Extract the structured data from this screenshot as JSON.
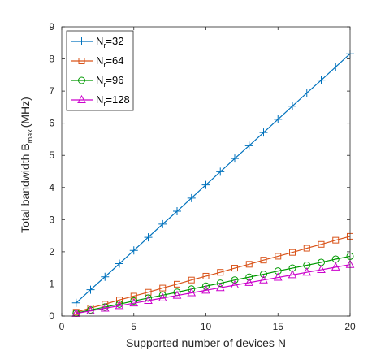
{
  "chart_data": {
    "type": "line",
    "xlabel": "Supported number of devices N",
    "ylabel_main": "Total bandwidth B",
    "ylabel_sub": "max",
    "ylabel_unit": "(MHz)",
    "xlim": [
      0,
      20
    ],
    "ylim": [
      0,
      9
    ],
    "xticks": [
      0,
      5,
      10,
      15,
      20
    ],
    "yticks": [
      0,
      1,
      2,
      3,
      4,
      5,
      6,
      7,
      8,
      9
    ],
    "grid": false,
    "legend_position": "top-left",
    "x": [
      1,
      2,
      3,
      4,
      5,
      6,
      7,
      8,
      9,
      10,
      11,
      12,
      13,
      14,
      15,
      16,
      17,
      18,
      19,
      20
    ],
    "series": [
      {
        "name": "N_r=32",
        "label_main": "N",
        "label_sub": "r",
        "label_tail": "=32",
        "color": "#0072BD",
        "marker": "plus",
        "values": [
          0.41,
          0.82,
          1.22,
          1.63,
          2.04,
          2.45,
          2.86,
          3.26,
          3.67,
          4.08,
          4.49,
          4.9,
          5.3,
          5.71,
          6.12,
          6.53,
          6.94,
          7.34,
          7.75,
          8.16
        ]
      },
      {
        "name": "N_r=64",
        "label_main": "N",
        "label_sub": "r",
        "label_tail": "=64",
        "color": "#D95319",
        "marker": "square",
        "values": [
          0.12,
          0.25,
          0.37,
          0.5,
          0.62,
          0.74,
          0.87,
          0.99,
          1.12,
          1.24,
          1.36,
          1.49,
          1.61,
          1.74,
          1.86,
          1.98,
          2.11,
          2.23,
          2.36,
          2.48
        ]
      },
      {
        "name": "N_r=96",
        "label_main": "N",
        "label_sub": "r",
        "label_tail": "=96",
        "color": "#009900",
        "marker": "circle",
        "values": [
          0.09,
          0.19,
          0.28,
          0.37,
          0.47,
          0.56,
          0.65,
          0.74,
          0.84,
          0.93,
          1.02,
          1.12,
          1.21,
          1.3,
          1.4,
          1.49,
          1.58,
          1.67,
          1.77,
          1.86
        ]
      },
      {
        "name": "N_r=128",
        "label_main": "N",
        "label_sub": "r",
        "label_tail": "=128",
        "color": "#CC00CC",
        "marker": "triangle",
        "values": [
          0.08,
          0.16,
          0.24,
          0.32,
          0.4,
          0.48,
          0.56,
          0.64,
          0.72,
          0.8,
          0.88,
          0.96,
          1.04,
          1.12,
          1.2,
          1.28,
          1.36,
          1.44,
          1.52,
          1.6
        ]
      }
    ]
  }
}
